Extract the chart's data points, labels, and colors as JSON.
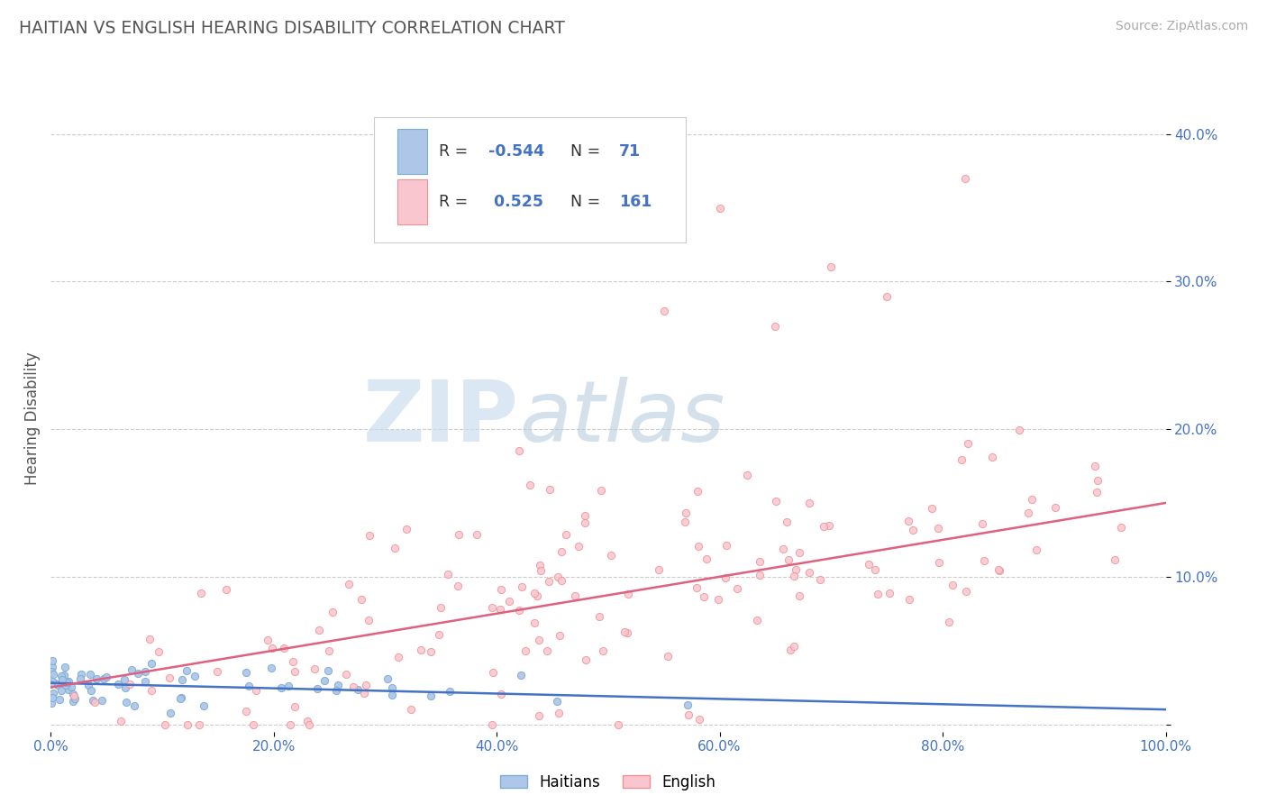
{
  "title": "HAITIAN VS ENGLISH HEARING DISABILITY CORRELATION CHART",
  "source": "Source: ZipAtlas.com",
  "ylabel": "Hearing Disability",
  "xmin": 0.0,
  "xmax": 1.0,
  "ymin": -0.005,
  "ymax": 0.42,
  "bg_color": "#ffffff",
  "grid_color": "#cccccc",
  "title_color": "#555555",
  "axis_tick_color": "#4472c4",
  "ylabel_color": "#555555",
  "watermark_zip_color": "#c8d8ec",
  "watermark_atlas_color": "#b8c8dc",
  "legend_box_color": "#dddddd",
  "haitian_face": "#aec6e8",
  "haitian_edge": "#7aadd4",
  "english_face": "#f9c6cf",
  "english_edge": "#f09090",
  "trend_haitian_color": "#4472c4",
  "trend_english_color": "#e06080",
  "bottom_legend_haitian_face": "#aec6e8",
  "bottom_legend_haitian_edge": "#7aadd4",
  "bottom_legend_english_face": "#f9c6cf",
  "bottom_legend_english_edge": "#f09090",
  "legend_text_color": "#333333",
  "legend_num_color": "#4472c4",
  "scatter_size": 35,
  "haitian_seed": 12,
  "english_seed": 77
}
